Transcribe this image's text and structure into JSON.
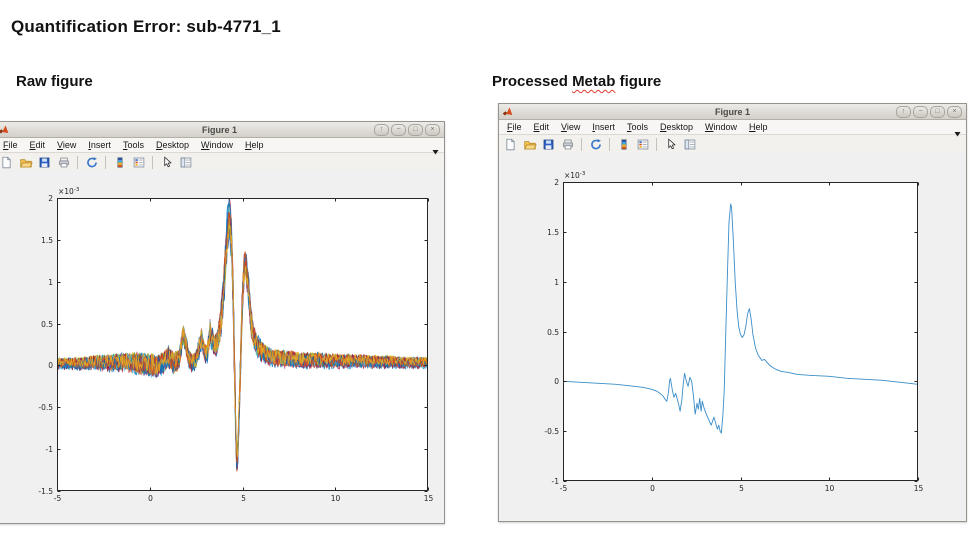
{
  "page": {
    "title": "Quantification Error: sub-4771_1",
    "raw_heading": "Raw figure",
    "processed_heading": {
      "pre": "Processed",
      "misspelled": "Metab",
      "post": "figure"
    }
  },
  "colors": {
    "heading_text": "#121212",
    "spellcheck_squiggle": "#e03c31",
    "figure_background": "#f0f0f0",
    "plot_background": "#ffffff",
    "axis": "#262626",
    "matlab_blue": "#0072BD"
  },
  "windows": {
    "raw": {
      "title": "Figure 1",
      "menu": [
        "File",
        "Edit",
        "View",
        "Insert",
        "Tools",
        "Desktop",
        "Window",
        "Help"
      ],
      "toolbar": [
        "new-figure",
        "open",
        "save",
        "print",
        "|",
        "link-plot",
        "|",
        "insert-colorbar",
        "insert-legend",
        "|",
        "edit-plot",
        "plot-browser"
      ],
      "buttons": [
        {
          "name": "shade",
          "glyph": "↑"
        },
        {
          "name": "minimize",
          "glyph": "−"
        },
        {
          "name": "maximize",
          "glyph": "□"
        },
        {
          "name": "close",
          "glyph": "×"
        }
      ]
    },
    "metab": {
      "title": "Figure 1",
      "menu": [
        "File",
        "Edit",
        "View",
        "Insert",
        "Tools",
        "Desktop",
        "Window",
        "Help"
      ],
      "toolbar": [
        "new-figure",
        "open",
        "save",
        "print",
        "|",
        "link-plot",
        "|",
        "insert-colorbar",
        "insert-legend",
        "|",
        "edit-plot",
        "plot-browser"
      ],
      "buttons": [
        {
          "name": "shade",
          "glyph": "↑"
        },
        {
          "name": "minimize",
          "glyph": "−"
        },
        {
          "name": "maximize",
          "glyph": "□"
        },
        {
          "name": "close",
          "glyph": "×"
        }
      ]
    }
  },
  "chart_data": [
    {
      "id": "raw",
      "type": "line",
      "subtype": "multi-trace-noisy-spectra",
      "xlim": [
        -5,
        15
      ],
      "ylim": [
        -1.5,
        2
      ],
      "unit_scale": "1e-3",
      "exponent": {
        "base": "×10",
        "power": "-3"
      },
      "xticks": [
        -5,
        0,
        5,
        10,
        15
      ],
      "yticks": [
        -1.5,
        -1,
        -0.5,
        0,
        0.5,
        1,
        1.5,
        2
      ],
      "axis_color": "#262626",
      "n_traces": 24,
      "seed": 7,
      "trace_colors": [
        "#0072BD",
        "#D95319",
        "#EDB120",
        "#7E2F8E",
        "#77AC30",
        "#4DBEEE",
        "#A2142F"
      ],
      "envelope": [
        [
          -5,
          0.02,
          0.05
        ],
        [
          -4,
          0.02,
          0.06
        ],
        [
          -3,
          0.03,
          0.07
        ],
        [
          -2,
          0.03,
          0.09
        ],
        [
          -1.2,
          0.04,
          0.1
        ],
        [
          -0.6,
          0.02,
          0.12
        ],
        [
          0,
          0.0,
          0.13
        ],
        [
          0.4,
          -0.02,
          0.13
        ],
        [
          0.8,
          0.04,
          0.12
        ],
        [
          1.0,
          0.1,
          0.12
        ],
        [
          1.3,
          0.02,
          0.12
        ],
        [
          1.6,
          0.08,
          0.12
        ],
        [
          1.8,
          0.38,
          0.1
        ],
        [
          1.9,
          0.3,
          0.1
        ],
        [
          2.1,
          0.08,
          0.1
        ],
        [
          2.3,
          0.02,
          0.1
        ],
        [
          2.5,
          0.06,
          0.1
        ],
        [
          2.7,
          0.25,
          0.1
        ],
        [
          2.8,
          0.33,
          0.1
        ],
        [
          2.95,
          0.15,
          0.1
        ],
        [
          3.1,
          0.14,
          0.1
        ],
        [
          3.25,
          0.4,
          0.12
        ],
        [
          3.35,
          0.3,
          0.12
        ],
        [
          3.5,
          0.24,
          0.12
        ],
        [
          3.65,
          0.28,
          0.12
        ],
        [
          3.8,
          0.45,
          0.15
        ],
        [
          3.95,
          0.8,
          0.18
        ],
        [
          4.1,
          1.3,
          0.2
        ],
        [
          4.2,
          1.65,
          0.15
        ],
        [
          4.3,
          1.8,
          0.1
        ],
        [
          4.4,
          1.55,
          0.15
        ],
        [
          4.5,
          0.8,
          0.25
        ],
        [
          4.6,
          -0.4,
          0.25
        ],
        [
          4.68,
          -1.15,
          0.12
        ],
        [
          4.75,
          -1.05,
          0.12
        ],
        [
          4.85,
          -0.35,
          0.2
        ],
        [
          4.95,
          0.45,
          0.22
        ],
        [
          5.05,
          1.05,
          0.15
        ],
        [
          5.15,
          1.25,
          0.1
        ],
        [
          5.3,
          0.95,
          0.15
        ],
        [
          5.45,
          0.55,
          0.15
        ],
        [
          5.6,
          0.33,
          0.13
        ],
        [
          5.8,
          0.22,
          0.12
        ],
        [
          6.1,
          0.15,
          0.1
        ],
        [
          6.5,
          0.1,
          0.09
        ],
        [
          7,
          0.08,
          0.09
        ],
        [
          8,
          0.06,
          0.08
        ],
        [
          9,
          0.06,
          0.08
        ],
        [
          10,
          0.05,
          0.07
        ],
        [
          11,
          0.05,
          0.07
        ],
        [
          12,
          0.04,
          0.06
        ],
        [
          13,
          0.04,
          0.06
        ],
        [
          14,
          0.03,
          0.05
        ],
        [
          15,
          0.03,
          0.05
        ]
      ]
    },
    {
      "id": "processed",
      "type": "line",
      "subtype": "single-trace-spectrum",
      "xlim": [
        -5,
        15
      ],
      "ylim": [
        -1,
        2
      ],
      "unit_scale": "1e-3",
      "exponent": {
        "base": "×10",
        "power": "-3"
      },
      "xticks": [
        -5,
        0,
        5,
        10,
        15
      ],
      "yticks": [
        -1,
        -0.5,
        0,
        0.5,
        1,
        1.5,
        2
      ],
      "axis_color": "#262626",
      "color": "#3a8dc8",
      "points": [
        [
          -5,
          0.0
        ],
        [
          -4,
          -0.01
        ],
        [
          -3,
          -0.02
        ],
        [
          -2,
          -0.03
        ],
        [
          -1,
          -0.05
        ],
        [
          -0.5,
          -0.06
        ],
        [
          0,
          -0.08
        ],
        [
          0.3,
          -0.1
        ],
        [
          0.6,
          -0.14
        ],
        [
          0.75,
          -0.18
        ],
        [
          0.85,
          -0.2
        ],
        [
          0.95,
          -0.1
        ],
        [
          1.0,
          0.0
        ],
        [
          1.05,
          0.03
        ],
        [
          1.15,
          -0.08
        ],
        [
          1.25,
          -0.16
        ],
        [
          1.35,
          -0.12
        ],
        [
          1.5,
          -0.22
        ],
        [
          1.6,
          -0.3
        ],
        [
          1.7,
          -0.18
        ],
        [
          1.78,
          -0.02
        ],
        [
          1.85,
          0.08
        ],
        [
          1.95,
          0.0
        ],
        [
          2.05,
          -0.05
        ],
        [
          2.15,
          0.04
        ],
        [
          2.25,
          0.0
        ],
        [
          2.35,
          -0.15
        ],
        [
          2.45,
          -0.33
        ],
        [
          2.55,
          -0.22
        ],
        [
          2.62,
          -0.28
        ],
        [
          2.7,
          -0.17
        ],
        [
          2.78,
          -0.3
        ],
        [
          2.85,
          -0.2
        ],
        [
          2.95,
          -0.27
        ],
        [
          3.05,
          -0.32
        ],
        [
          3.2,
          -0.38
        ],
        [
          3.35,
          -0.44
        ],
        [
          3.5,
          -0.36
        ],
        [
          3.6,
          -0.42
        ],
        [
          3.7,
          -0.48
        ],
        [
          3.78,
          -0.44
        ],
        [
          3.85,
          -0.5
        ],
        [
          3.92,
          -0.52
        ],
        [
          4.0,
          -0.35
        ],
        [
          4.08,
          -0.1
        ],
        [
          4.15,
          0.35
        ],
        [
          4.25,
          1.0
        ],
        [
          4.35,
          1.6
        ],
        [
          4.45,
          1.78
        ],
        [
          4.5,
          1.74
        ],
        [
          4.6,
          1.4
        ],
        [
          4.7,
          1.0
        ],
        [
          4.8,
          0.72
        ],
        [
          4.9,
          0.55
        ],
        [
          5.0,
          0.47
        ],
        [
          5.1,
          0.44
        ],
        [
          5.2,
          0.47
        ],
        [
          5.3,
          0.55
        ],
        [
          5.4,
          0.68
        ],
        [
          5.5,
          0.73
        ],
        [
          5.6,
          0.62
        ],
        [
          5.7,
          0.47
        ],
        [
          5.85,
          0.33
        ],
        [
          6.0,
          0.26
        ],
        [
          6.2,
          0.21
        ],
        [
          6.35,
          0.22
        ],
        [
          6.5,
          0.19
        ],
        [
          6.65,
          0.16
        ],
        [
          6.8,
          0.14
        ],
        [
          7.0,
          0.12
        ],
        [
          7.3,
          0.1
        ],
        [
          7.7,
          0.09
        ],
        [
          8.2,
          0.07
        ],
        [
          9.0,
          0.06
        ],
        [
          10.0,
          0.05
        ],
        [
          11.0,
          0.03
        ],
        [
          12.0,
          0.02
        ],
        [
          13.0,
          0.01
        ],
        [
          14.0,
          -0.01
        ],
        [
          15.0,
          -0.03
        ]
      ]
    }
  ]
}
